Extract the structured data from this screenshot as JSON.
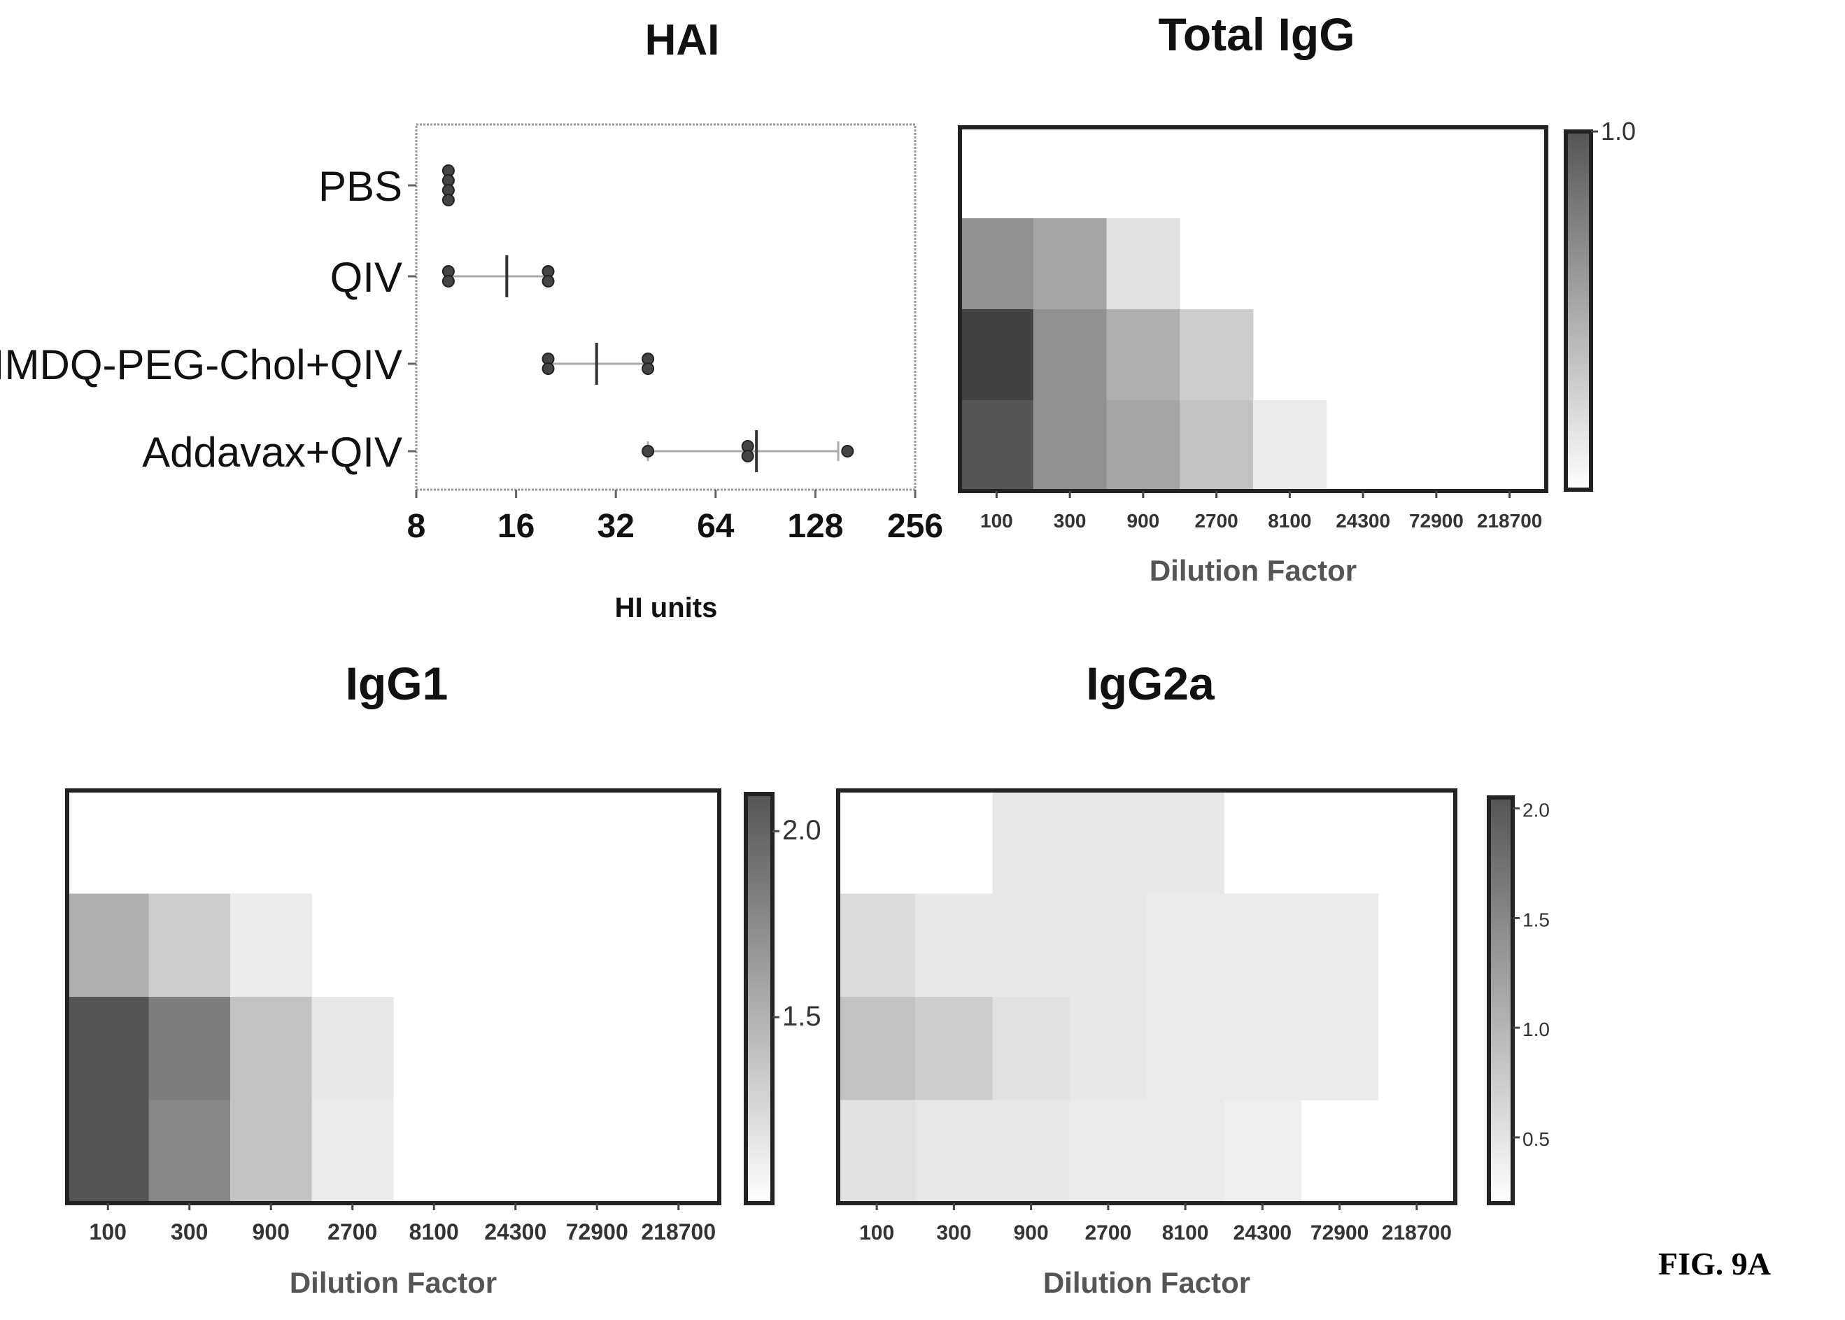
{
  "figure_label": "FIG. 9A",
  "chart_data": [
    {
      "type": "scatter",
      "title": "HAI",
      "xlabel": "HI units",
      "ylabel": "",
      "x_scale": "log2",
      "xlim": [
        8,
        256
      ],
      "x_ticks": [
        "8",
        "16",
        "32",
        "64",
        "128",
        "256"
      ],
      "categories": [
        "PBS",
        "QIV",
        "IMDQ-PEG-Chol+QIV",
        "Addavax+QIV"
      ],
      "points": [
        [
          10,
          10,
          10,
          10
        ],
        [
          10,
          10,
          20,
          20
        ],
        [
          20,
          20,
          40,
          40
        ],
        [
          40,
          80,
          80,
          160
        ]
      ],
      "mean": [
        null,
        15,
        28,
        85
      ],
      "error": [
        [
          null,
          null
        ],
        [
          10,
          20
        ],
        [
          20,
          40
        ],
        [
          40,
          150
        ]
      ],
      "grid": false
    },
    {
      "type": "heatmap",
      "title": "Total IgG",
      "xlabel": "Dilution Factor",
      "ylabel": "",
      "categories": [
        "100",
        "300",
        "900",
        "2700",
        "8100",
        "24300",
        "72900",
        "218700"
      ],
      "rows": 4,
      "values": [
        [
          0,
          0,
          0,
          0,
          0,
          0,
          0,
          0
        ],
        [
          0.55,
          0.45,
          0.15,
          0,
          0,
          0,
          0,
          0
        ],
        [
          0.95,
          0.55,
          0.4,
          0.25,
          0,
          0,
          0,
          0
        ],
        [
          0.85,
          0.55,
          0.45,
          0.3,
          0.1,
          0,
          0,
          0
        ]
      ],
      "colorbar_ticks": [
        "1.0"
      ],
      "colorbar_range": [
        0,
        1.0
      ]
    },
    {
      "type": "heatmap",
      "title": "IgG1",
      "xlabel": "Dilution Factor",
      "ylabel": "",
      "categories": [
        "100",
        "300",
        "900",
        "2700",
        "8100",
        "24300",
        "72900",
        "218700"
      ],
      "rows": 4,
      "values": [
        [
          0,
          0,
          0,
          0,
          0,
          0,
          0,
          0
        ],
        [
          0.4,
          0.25,
          0.1,
          0,
          0,
          0,
          0,
          0
        ],
        [
          0.85,
          0.65,
          0.3,
          0.12,
          0,
          0,
          0,
          0
        ],
        [
          0.85,
          0.6,
          0.3,
          0.1,
          0,
          0,
          0,
          0
        ]
      ],
      "colorbar_ticks": [
        "2.0",
        "1.5"
      ],
      "colorbar_range": [
        1.0,
        2.1
      ]
    },
    {
      "type": "heatmap",
      "title": "IgG2a",
      "xlabel": "Dilution Factor",
      "ylabel": "",
      "categories": [
        "100",
        "300",
        "900",
        "2700",
        "8100",
        "24300",
        "72900",
        "218700"
      ],
      "rows": 4,
      "values": [
        [
          0,
          0,
          0.12,
          0.12,
          0.12,
          0,
          0,
          0
        ],
        [
          0.18,
          0.12,
          0.12,
          0.12,
          0.1,
          0.1,
          0.1,
          0
        ],
        [
          0.3,
          0.25,
          0.15,
          0.12,
          0.1,
          0.1,
          0.1,
          0
        ],
        [
          0.15,
          0.12,
          0.12,
          0.1,
          0.1,
          0.08,
          0,
          0
        ]
      ],
      "colorbar_ticks": [
        "2.0",
        "1.5",
        "1.0",
        "0.5"
      ],
      "colorbar_range": [
        0.2,
        2.05
      ]
    }
  ]
}
